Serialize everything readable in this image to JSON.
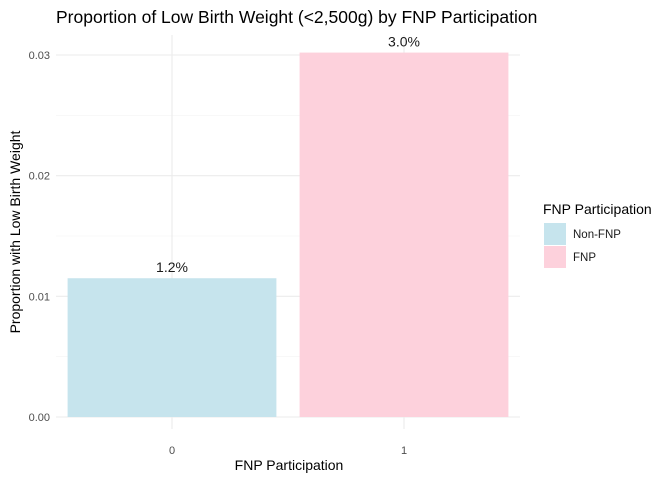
{
  "chart_data": {
    "type": "bar",
    "title": "Proportion of Low Birth Weight (<2,500g) by FNP Participation",
    "xlabel": "FNP Participation",
    "ylabel": "Proportion with Low Birth Weight",
    "categories": [
      "0",
      "1"
    ],
    "values": [
      0.0115,
      0.0302
    ],
    "data_labels": [
      "1.2%",
      "3.0%"
    ],
    "ylim": [
      0,
      0.0315
    ],
    "yticks": [
      0.0,
      0.01,
      0.02,
      0.03
    ],
    "ytick_labels": [
      "0.00",
      "0.01",
      "0.02",
      "0.03"
    ],
    "grid": true,
    "legend": {
      "title": "FNP Participation",
      "position": "right",
      "entries": [
        {
          "label": "Non-FNP",
          "color": "#c6e4ed"
        },
        {
          "label": "FNP",
          "color": "#fdd1dc"
        }
      ]
    },
    "bar_colors": [
      "#c6e4ed",
      "#fdd1dc"
    ]
  }
}
